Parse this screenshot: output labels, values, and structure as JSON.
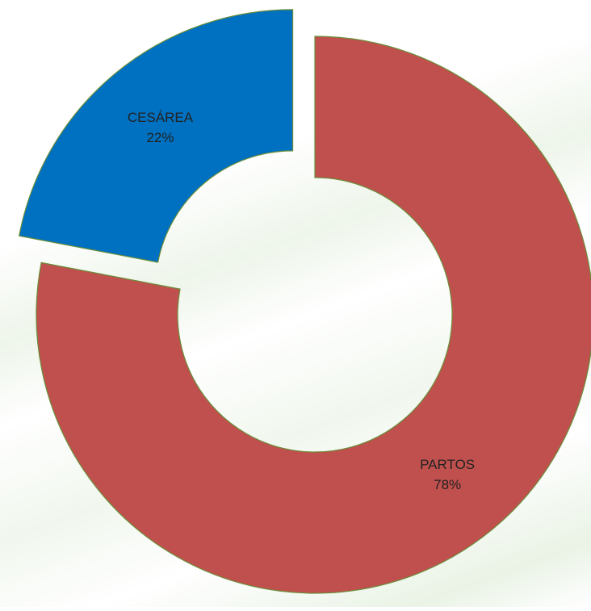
{
  "chart_data": {
    "type": "pie",
    "donut": true,
    "categories": [
      "PARTOS",
      "CESÁREA"
    ],
    "values": [
      78,
      22
    ],
    "value_labels": [
      "78%",
      "22%"
    ],
    "colors": [
      "#c0504d",
      "#0070c0"
    ],
    "explode": [
      false,
      true
    ]
  }
}
